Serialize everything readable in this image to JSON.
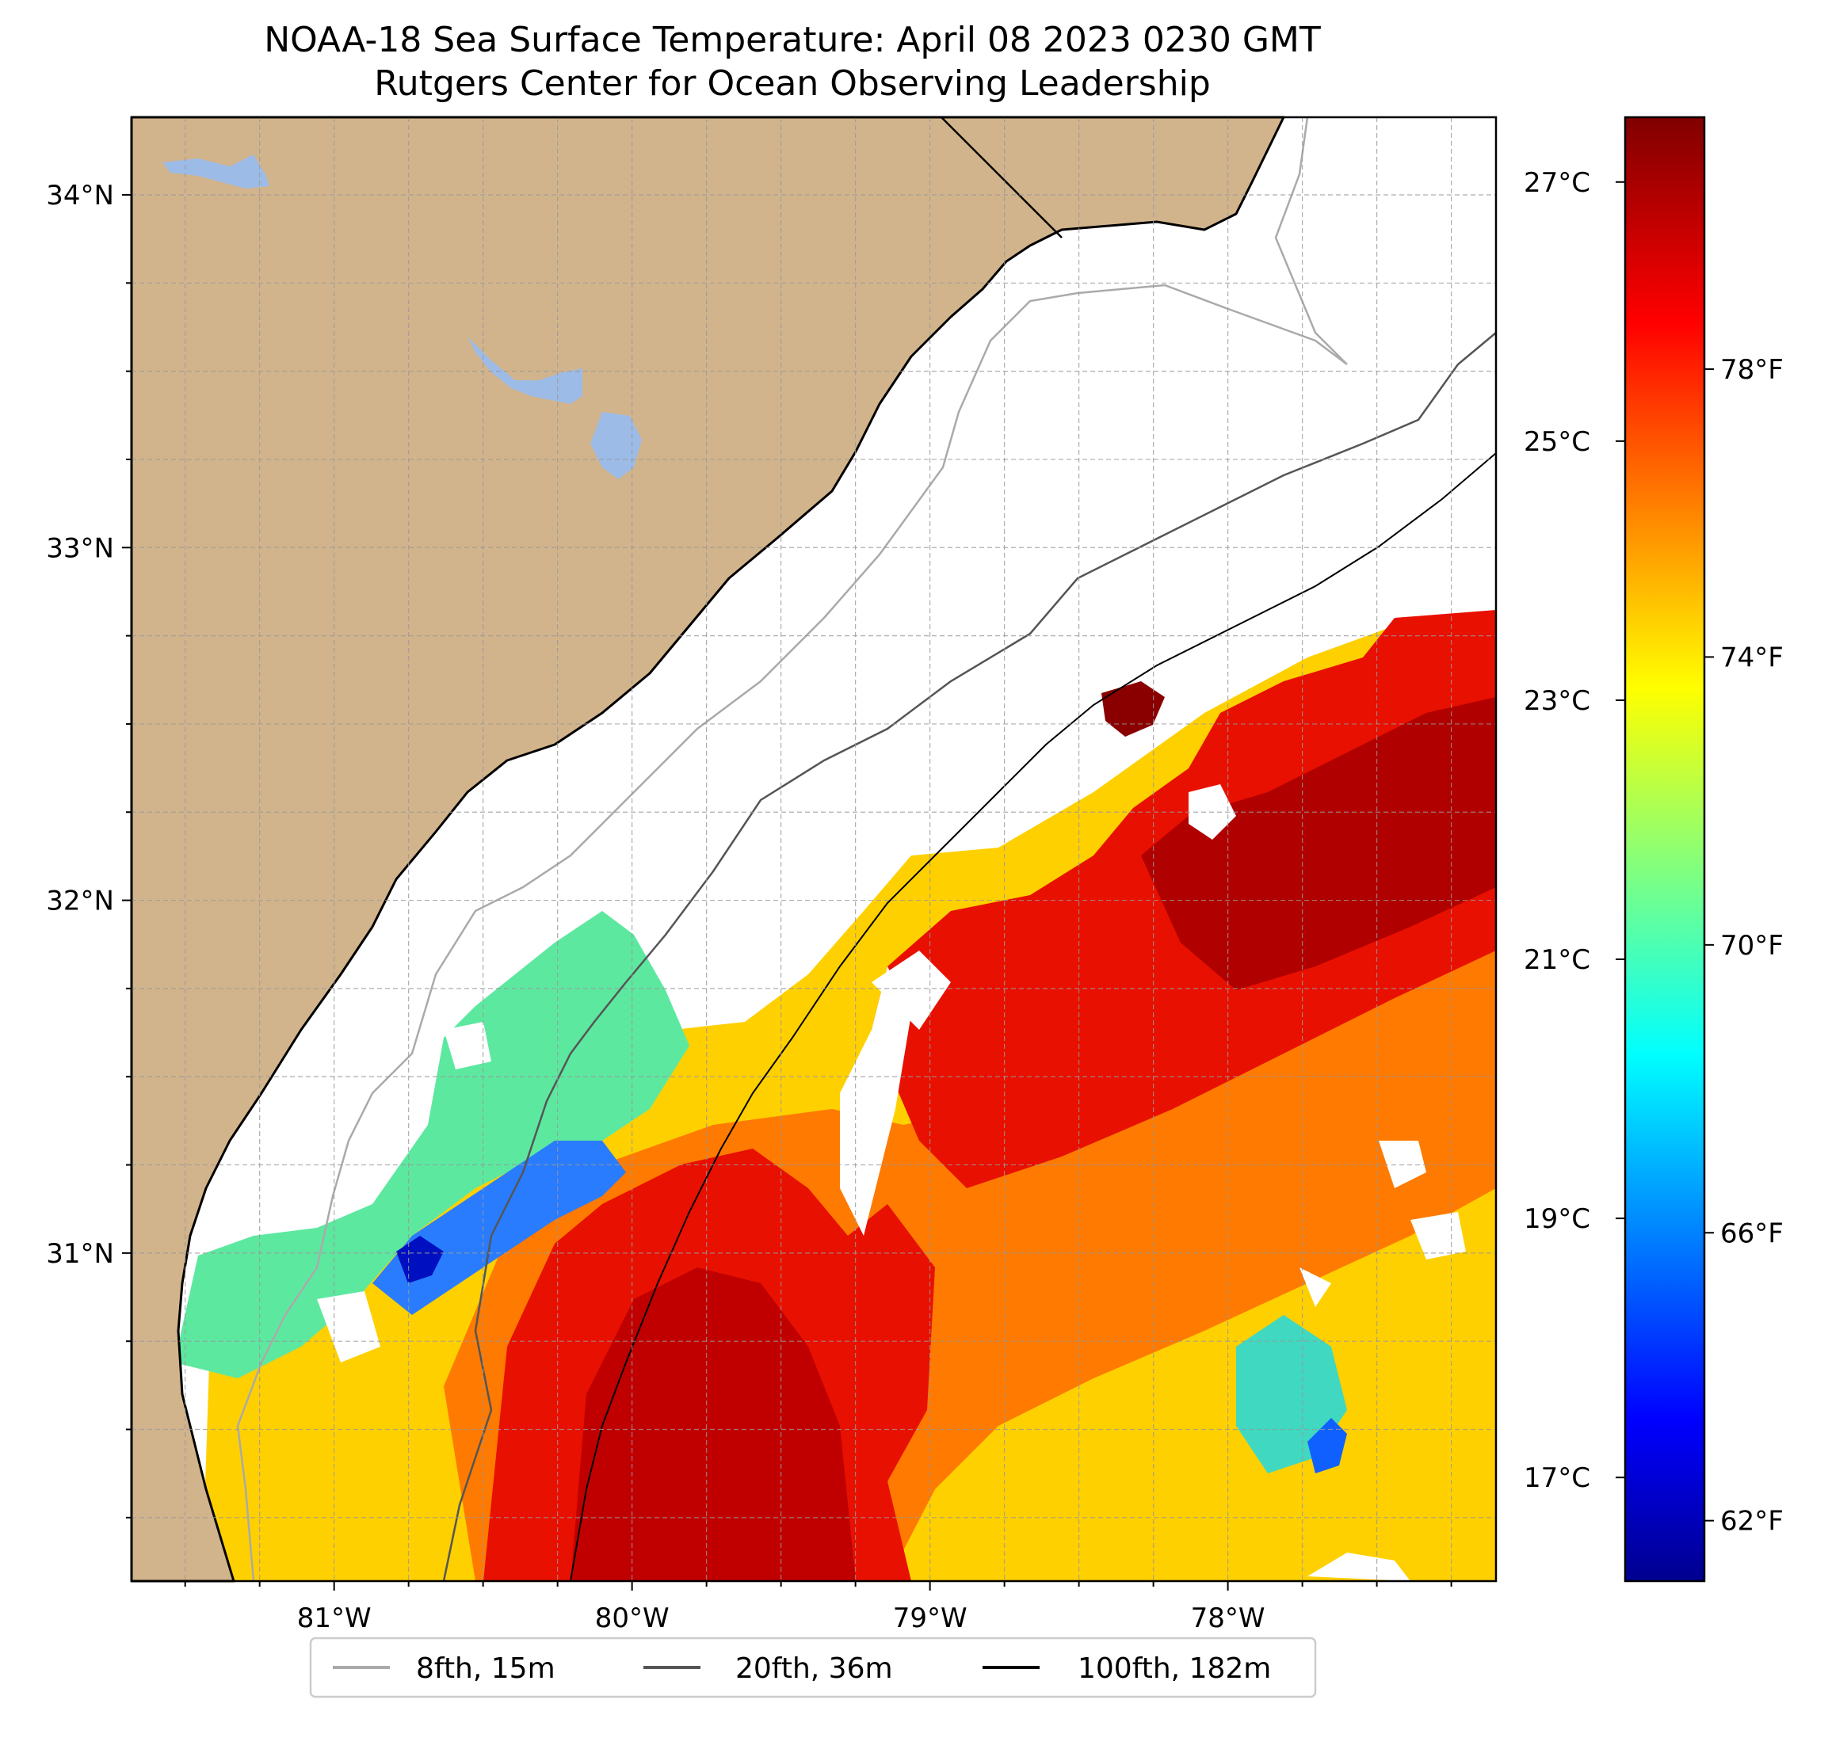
{
  "title": {
    "line1": "NOAA-18 Sea Surface Temperature: April 08 2023 0230 GMT",
    "line2": "Rutgers Center for Ocean Observing Leadership"
  },
  "colors": {
    "land": "#d2b48c",
    "lakes": "#9cbbe6",
    "coastline": "#000000",
    "grid": "#aaaaaa",
    "no_data": "#ffffff"
  },
  "map_extent": {
    "lon_min": -81.68,
    "lon_max": -77.1,
    "lat_min": 30.07,
    "lat_max": 34.22
  },
  "axes": {
    "lat_ticks": [
      {
        "value": 34,
        "label": "34°N"
      },
      {
        "value": 33,
        "label": "33°N"
      },
      {
        "value": 32,
        "label": "32°N"
      },
      {
        "value": 31,
        "label": "31°N"
      }
    ],
    "lon_ticks": [
      {
        "value": -81,
        "label": "81°W"
      },
      {
        "value": -80,
        "label": "80°W"
      },
      {
        "value": -79,
        "label": "79°W"
      },
      {
        "value": -78,
        "label": "78°W"
      }
    ]
  },
  "colorbar": {
    "colormap": "jet",
    "range_c": [
      16.2,
      27.5
    ],
    "celsius_ticks": [
      {
        "value": 17,
        "label": "17°C"
      },
      {
        "value": 19,
        "label": "19°C"
      },
      {
        "value": 21,
        "label": "21°C"
      },
      {
        "value": 23,
        "label": "23°C"
      },
      {
        "value": 25,
        "label": "25°C"
      },
      {
        "value": 27,
        "label": "27°C"
      }
    ],
    "fahrenheit_ticks": [
      {
        "value": 62,
        "label": "62°F"
      },
      {
        "value": 66,
        "label": "66°F"
      },
      {
        "value": 70,
        "label": "70°F"
      },
      {
        "value": 74,
        "label": "74°F"
      },
      {
        "value": 78,
        "label": "78°F"
      }
    ]
  },
  "legend": {
    "items": [
      {
        "label": "8fth, 15m",
        "color": "#aaaaaa"
      },
      {
        "label": "20fth, 36m",
        "color": "#555555"
      },
      {
        "label": "100fth, 182m",
        "color": "#000000"
      }
    ]
  }
}
